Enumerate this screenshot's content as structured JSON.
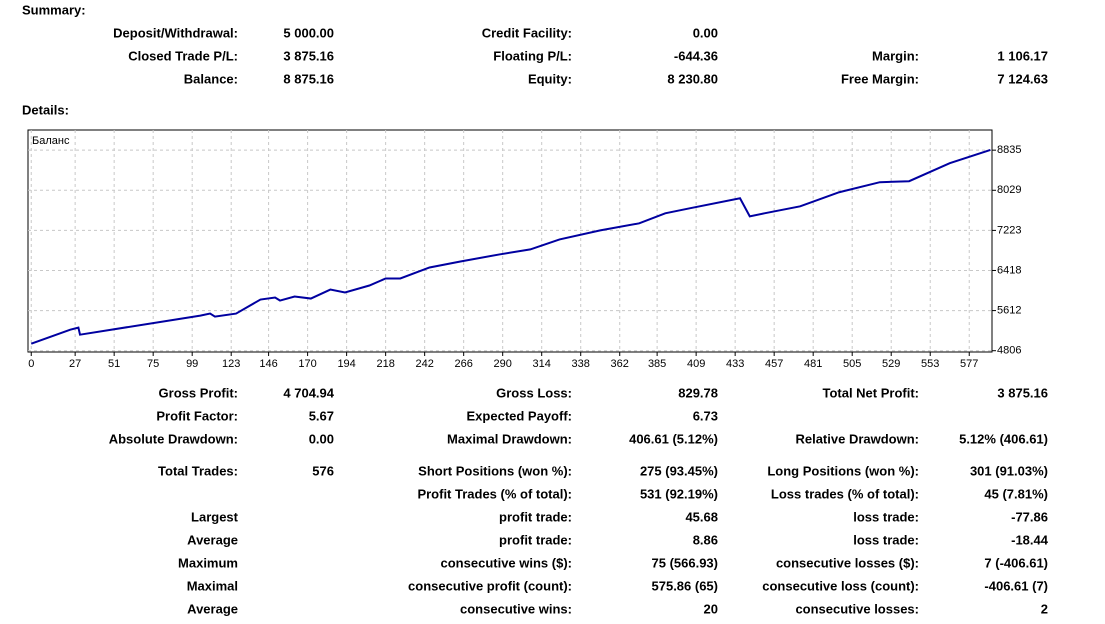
{
  "summary": {
    "title": "Summary:",
    "rows": [
      [
        "Deposit/Withdrawal:",
        "5 000.00",
        "Credit Facility:",
        "0.00",
        null,
        null
      ],
      [
        "Closed Trade P/L:",
        "3 875.16",
        "Floating P/L:",
        "-644.36",
        "Margin:",
        "1 106.17"
      ],
      [
        "Balance:",
        "8 875.16",
        "Equity:",
        "8 230.80",
        "Free Margin:",
        "7 124.63"
      ]
    ]
  },
  "details": {
    "title": "Details:",
    "rows": [
      [
        "Gross Profit:",
        "4 704.94",
        "Gross Loss:",
        "829.78",
        "Total Net Profit:",
        "3 875.16"
      ],
      [
        "Profit Factor:",
        "5.67",
        "Expected Payoff:",
        "6.73",
        null,
        null
      ],
      [
        "Absolute Drawdown:",
        "0.00",
        "Maximal Drawdown:",
        "406.61 (5.12%)",
        "Relative Drawdown:",
        "5.12% (406.61)"
      ],
      [
        "Total Trades:",
        "576",
        "Short Positions (won %):",
        "275 (93.45%)",
        "Long Positions (won %):",
        "301 (91.03%)"
      ],
      [
        null,
        null,
        "Profit Trades (% of total):",
        "531 (92.19%)",
        "Loss trades (% of total):",
        "45 (7.81%)"
      ],
      [
        "Largest",
        null,
        "profit trade:",
        "45.68",
        "loss trade:",
        "-77.86"
      ],
      [
        "Average",
        null,
        "profit trade:",
        "8.86",
        "loss trade:",
        "-18.44"
      ],
      [
        "Maximum",
        null,
        "consecutive wins ($):",
        "75 (566.93)",
        "consecutive losses ($):",
        "7 (-406.61)"
      ],
      [
        "Maximal",
        null,
        "consecutive profit (count):",
        "575.86 (65)",
        "consecutive loss (count):",
        "-406.61 (7)"
      ],
      [
        "Average",
        null,
        "consecutive wins:",
        "20",
        "consecutive losses:",
        "2"
      ]
    ]
  },
  "chart_data": {
    "type": "line",
    "x": [
      0,
      24,
      29,
      30,
      104,
      110,
      113,
      126,
      141,
      150,
      153,
      162,
      172,
      184,
      193,
      208,
      218,
      227,
      245,
      264,
      288,
      307,
      325,
      350,
      374,
      390,
      405,
      436,
      442,
      451,
      473,
      497,
      522,
      540,
      565,
      590
    ],
    "series": [
      {
        "name": "Баланс",
        "color": "#0000a0",
        "values": [
          4947,
          5229,
          5270,
          5128,
          5511,
          5552,
          5491,
          5552,
          5834,
          5874,
          5814,
          5894,
          5854,
          6035,
          5975,
          6116,
          6257,
          6257,
          6478,
          6599,
          6740,
          6841,
          7042,
          7224,
          7365,
          7566,
          7667,
          7869,
          7506,
          7566,
          7707,
          7990,
          8191,
          8211,
          8574,
          8840
        ]
      }
    ],
    "xlim": [
      -2,
      591
    ],
    "ylim": [
      4780,
      9240
    ],
    "xticks": [
      0,
      27,
      51,
      75,
      99,
      123,
      146,
      170,
      194,
      218,
      242,
      266,
      290,
      314,
      338,
      362,
      385,
      409,
      433,
      457,
      481,
      505,
      529,
      553,
      577
    ],
    "yticks": [
      4806,
      5612,
      6418,
      7223,
      8029,
      8835
    ],
    "grid": true
  }
}
